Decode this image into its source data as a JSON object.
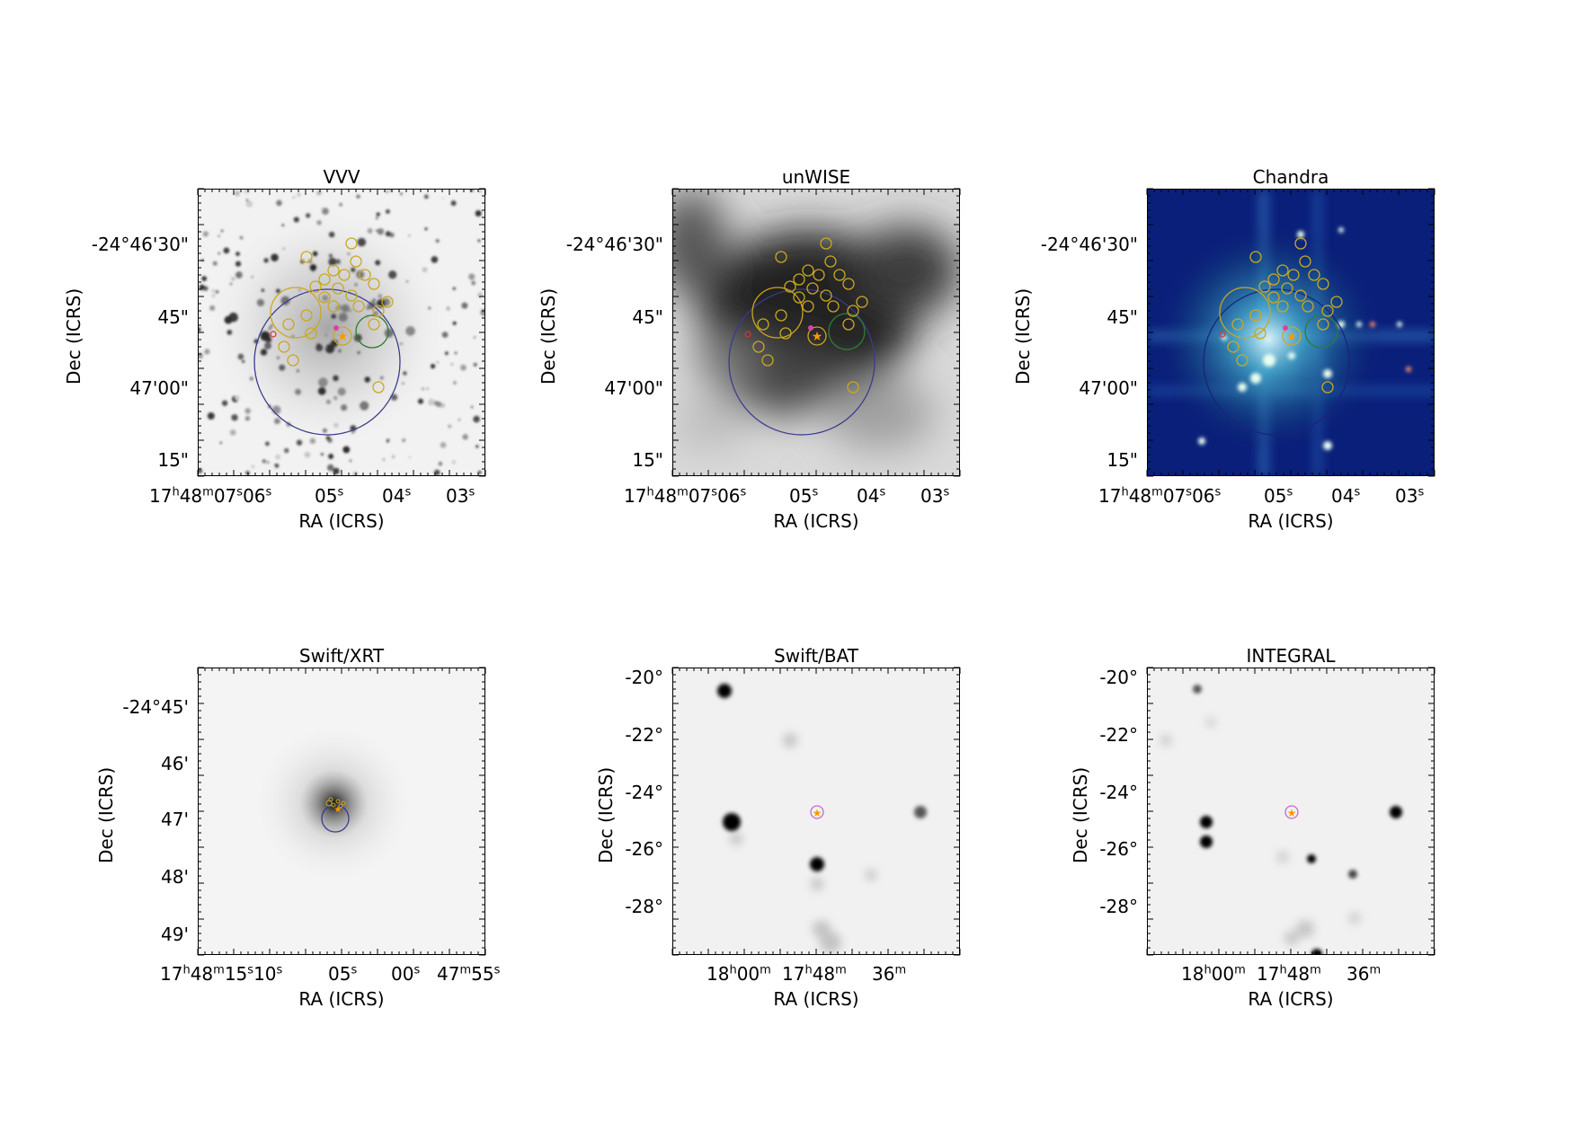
{
  "figure": {
    "panels": [
      {
        "id": "vvv",
        "title": "VVV",
        "ylabel": "Dec (ICRS)",
        "xlabel": "RA (ICRS)",
        "yticks": [
          "-24°46'30\"",
          "45\"",
          "47'00\"",
          "15\""
        ],
        "xticks": [
          {
            "main": "17",
            "parts": [
              [
                "h",
                "48"
              ],
              [
                "m",
                "07"
              ],
              [
                "s",
                "06"
              ],
              [
                "s",
                ""
              ]
            ]
          },
          {
            "main": "05",
            "sup": "s"
          },
          {
            "main": "04",
            "sup": "s"
          },
          {
            "main": "03",
            "sup": "s"
          }
        ],
        "style": "grey-stars"
      },
      {
        "id": "unwise",
        "title": "unWISE",
        "ylabel": "Dec (ICRS)",
        "xlabel": "RA (ICRS)",
        "yticks": [
          "-24°46'30\"",
          "45\"",
          "47'00\"",
          "15\""
        ],
        "style": "grey-blur"
      },
      {
        "id": "chandra",
        "title": "Chandra",
        "ylabel": "Dec (ICRS)",
        "xlabel": "RA (ICRS)",
        "yticks": [
          "-24°46'30\"",
          "45\"",
          "47'00\"",
          "15\""
        ],
        "style": "blue-xray"
      },
      {
        "id": "swift-xrt",
        "title": "Swift/XRT",
        "ylabel": "Dec (ICRS)",
        "xlabel": "RA (ICRS)",
        "yticks": [
          "-24°45'",
          "46'",
          "47'",
          "48'",
          "49'"
        ],
        "style": "grey-point"
      },
      {
        "id": "swift-bat",
        "title": "Swift/BAT",
        "ylabel": "Dec (ICRS)",
        "xlabel": "RA (ICRS)",
        "yticks": [
          "-20°",
          "-22°",
          "-24°",
          "-26°",
          "-28°"
        ],
        "style": "grey-wide"
      },
      {
        "id": "integral",
        "title": "INTEGRAL",
        "ylabel": "Dec (ICRS)",
        "xlabel": "RA (ICRS)",
        "yticks": [
          "-20°",
          "-22°",
          "-24°",
          "-26°",
          "-28°"
        ],
        "style": "grey-wide"
      }
    ],
    "xtick_text": {
      "vvv": {
        "a": "17",
        "ah": "h",
        "b": "48",
        "bm": "m",
        "c": "07",
        "cs": "s",
        "d": "06",
        "ds": "s",
        "e": "05",
        "es": "s",
        "f": "04",
        "fs": "s",
        "g": "03",
        "gs": "s"
      },
      "unwise": {
        "a": "17",
        "ah": "h",
        "b": "48",
        "bm": "m",
        "c": "07",
        "cs": "s",
        "d": "06",
        "ds": "s",
        "e": "05",
        "es": "s",
        "f": "04",
        "fs": "s",
        "g": "03",
        "gs": "s"
      },
      "chandra": {
        "a": "17",
        "ah": "h",
        "b": "48",
        "bm": "m",
        "c": "07",
        "cs": "s",
        "d": "06",
        "ds": "s",
        "e": "05",
        "es": "s",
        "f": "04",
        "fs": "s",
        "g": "03",
        "gs": "s"
      },
      "xrt": {
        "a": "17",
        "ah": "h",
        "b": "48",
        "bm": "m",
        "c": "15",
        "cs": "s",
        "d": "10",
        "ds": "s",
        "e": "05",
        "es": "s",
        "f": "00",
        "fs": "s",
        "g": "47",
        "gm": "m",
        "h": "55",
        "hs": "s"
      },
      "bat": {
        "a": "18",
        "ah": "h",
        "b": "00",
        "bm": "m",
        "c": "17",
        "ch": "h",
        "d": "48",
        "dm": "m",
        "e": "36",
        "em": "m"
      },
      "integral": {
        "a": "18",
        "ah": "h",
        "b": "00",
        "bm": "m",
        "c": "17",
        "ch": "h",
        "d": "48",
        "dm": "m",
        "e": "36",
        "em": "m"
      }
    }
  }
}
